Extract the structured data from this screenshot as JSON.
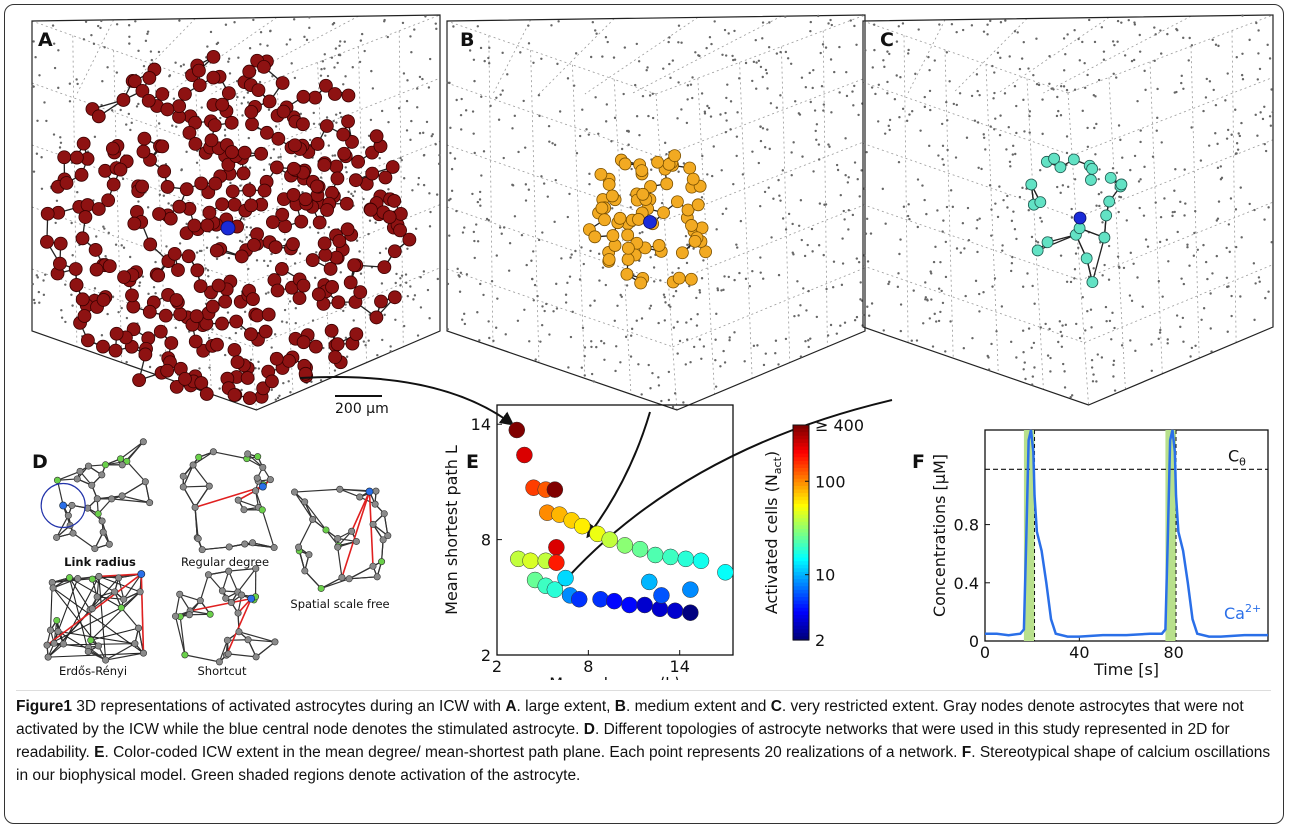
{
  "panel_labels": [
    "A",
    "B",
    "C",
    "D",
    "E",
    "F"
  ],
  "scale_bar": "200 µm",
  "topologies": [
    "Link radius",
    "Regular degree",
    "Spatial scale free",
    "Erdős-Rényi",
    "Shortcut"
  ],
  "chart_data": [
    {
      "type": "scatter",
      "xlabel": "Mean degree ⟨k⟩",
      "ylabel": "Mean shortest path L",
      "xlim": [
        2,
        17.5
      ],
      "xticks": [
        2,
        8,
        14
      ],
      "ylim": [
        2,
        15
      ],
      "yticks": [
        2,
        8,
        14
      ],
      "x": [
        3.3,
        3.8,
        4.4,
        5.2,
        5.8,
        5.3,
        6.1,
        6.9,
        7.6,
        8.6,
        9.4,
        10.4,
        11.4,
        12.4,
        13.4,
        14.4,
        15.4,
        17.0,
        3.4,
        4.2,
        5.2,
        5.9,
        5.9,
        4.5,
        5.2,
        5.8,
        6.5,
        6.8,
        7.4,
        8.8,
        9.7,
        10.7,
        11.7,
        12.7,
        13.7,
        14.7,
        14.7,
        12.0,
        12.8
      ],
      "values": [
        13.7,
        12.4,
        10.7,
        10.6,
        10.6,
        9.4,
        9.3,
        9.0,
        8.7,
        8.3,
        8.0,
        7.7,
        7.5,
        7.2,
        7.1,
        7.0,
        6.9,
        6.3,
        7.0,
        6.9,
        6.9,
        7.6,
        6.8,
        5.9,
        5.6,
        5.4,
        6.0,
        5.1,
        4.9,
        4.9,
        4.8,
        4.6,
        4.6,
        4.4,
        4.3,
        4.2,
        5.4,
        5.8,
        5.1
      ],
      "color_values": [
        400,
        250,
        150,
        130,
        400,
        100,
        80,
        70,
        60,
        50,
        40,
        30,
        25,
        22,
        20,
        18,
        16,
        15,
        40,
        45,
        40,
        250,
        180,
        25,
        20,
        18,
        12,
        8,
        5,
        5,
        4,
        4,
        3,
        3,
        3,
        2,
        8,
        10,
        6
      ],
      "colorbar": {
        "scale": "log",
        "colormap": "jet",
        "lim": [
          2,
          400
        ],
        "ticks": [
          2,
          10,
          100,
          {
            "value": 400,
            "label": "≥ 400"
          }
        ],
        "label": "Activated cells (N",
        "label_sub": "act",
        "label_end": ")"
      }
    },
    {
      "type": "line",
      "xlabel": "Time [s]",
      "ylabel": "Concentrations [µM]",
      "xlim": [
        0,
        120
      ],
      "xticks": [
        0,
        40,
        80
      ],
      "ylim": [
        0,
        1.45
      ],
      "yticks": [
        0,
        0.4,
        0.8
      ],
      "x": [
        0,
        5,
        10,
        15,
        16.5,
        17.5,
        18.5,
        19.5,
        20.5,
        21,
        22,
        24,
        26,
        28,
        30,
        35,
        40,
        50,
        60,
        70,
        75,
        76.5,
        77.5,
        78.5,
        79.5,
        80.5,
        81,
        82,
        84,
        86,
        88,
        90,
        95,
        100,
        110,
        120
      ],
      "series": [
        {
          "name": "Ca",
          "name_sup": "2+",
          "color": "#2a6fe8",
          "values": [
            0.05,
            0.05,
            0.04,
            0.05,
            0.08,
            0.7,
            1.38,
            1.45,
            1.3,
            1.0,
            0.75,
            0.62,
            0.4,
            0.15,
            0.05,
            0.03,
            0.03,
            0.04,
            0.04,
            0.05,
            0.05,
            0.08,
            0.7,
            1.38,
            1.45,
            1.3,
            1.0,
            0.75,
            0.62,
            0.4,
            0.15,
            0.05,
            0.03,
            0.03,
            0.04,
            0.04
          ]
        }
      ],
      "threshold": {
        "value": 1.18,
        "label": "C",
        "label_sub": "θ"
      },
      "shaded": [
        [
          16.5,
          21
        ],
        [
          76.5,
          81
        ]
      ],
      "shade_color": "#b8e08c"
    }
  ],
  "caption": [
    {
      "text": "Figure1",
      "bold": true
    },
    {
      "text": " 3D representations of activated astrocytes during an ICW with ",
      "bold": false
    },
    {
      "text": "A",
      "bold": true
    },
    {
      "text": ". large extent, ",
      "bold": false
    },
    {
      "text": "B",
      "bold": true
    },
    {
      "text": ". medium extent and ",
      "bold": false
    },
    {
      "text": "C",
      "bold": true
    },
    {
      "text": ". very restricted extent. Gray nodes denote astrocytes that were not activated by the ICW while the blue central node denotes the stimulated astrocyte. ",
      "bold": false
    },
    {
      "text": "D",
      "bold": true
    },
    {
      "text": ". Different topologies of astrocyte networks that were used in this study represented in 2D for readability. ",
      "bold": false
    },
    {
      "text": "E",
      "bold": true
    },
    {
      "text": ". Color-coded ICW extent in the mean degree/ mean-shortest path plane. Each point represents 20 realizations of a network. ",
      "bold": false
    },
    {
      "text": "F",
      "bold": true
    },
    {
      "text": ". Stereotypical shape of calcium oscillations in our biophysical model. Green shaded regions denote activation of the astrocyte.",
      "bold": false
    }
  ]
}
